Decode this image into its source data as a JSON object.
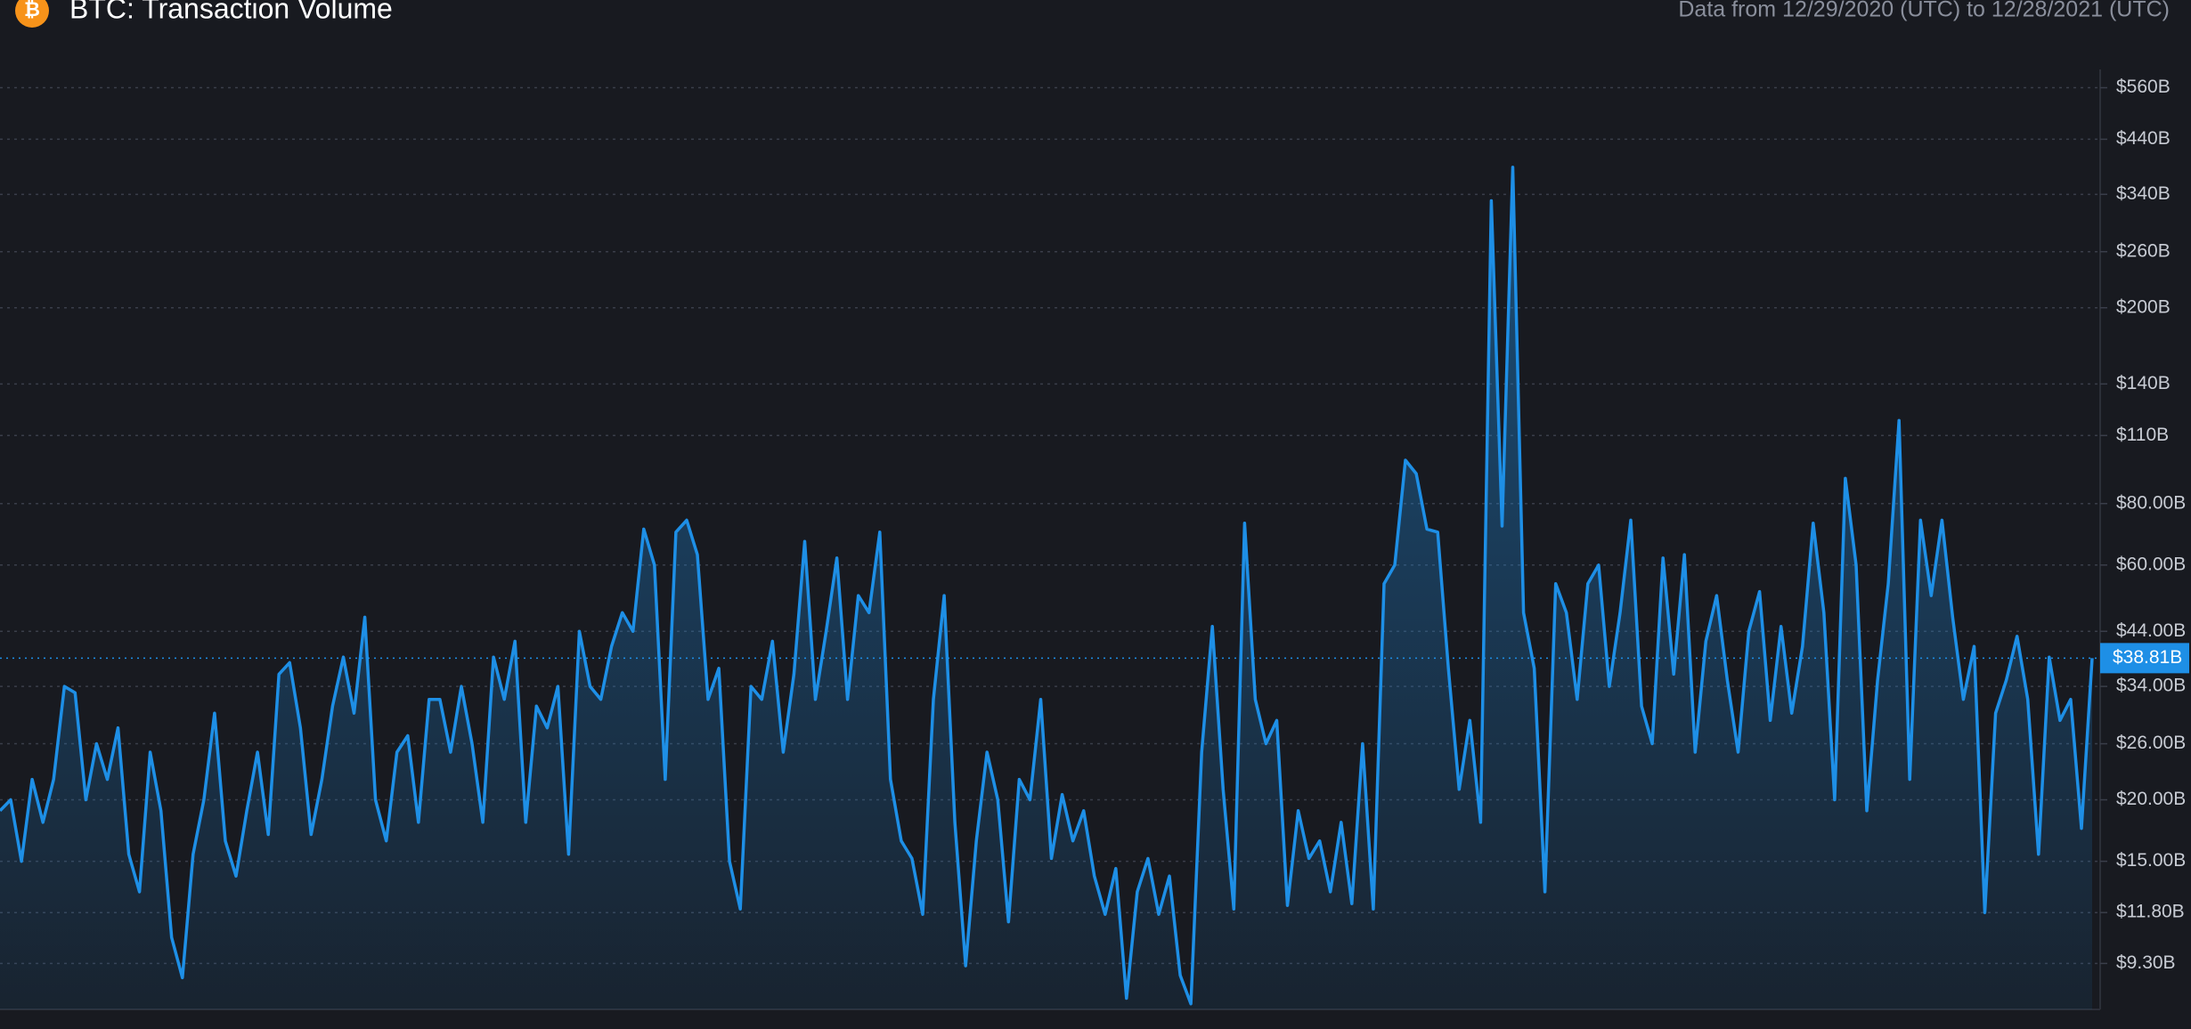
{
  "chart_data": {
    "type": "area",
    "title": "BTC: Transaction Volume",
    "subtitle": "Data from 12/29/2020 (UTC) to 12/28/2021 (UTC)",
    "color": "#1e8fe6",
    "log_scale": true,
    "grid": true,
    "ylim": [
      7.5,
      610
    ],
    "yticks": [
      {
        "value": 560,
        "label": "$560B"
      },
      {
        "value": 440,
        "label": "$440B"
      },
      {
        "value": 340,
        "label": "$340B"
      },
      {
        "value": 260,
        "label": "$260B"
      },
      {
        "value": 200,
        "label": "$200B"
      },
      {
        "value": 140,
        "label": "$140B"
      },
      {
        "value": 110,
        "label": "$110B"
      },
      {
        "value": 80,
        "label": "$80.00B"
      },
      {
        "value": 60,
        "label": "$60.00B"
      },
      {
        "value": 44,
        "label": "$44.00B"
      },
      {
        "value": 34,
        "label": "$34.00B"
      },
      {
        "value": 26,
        "label": "$26.00B"
      },
      {
        "value": 20,
        "label": "$20.00B"
      },
      {
        "value": 15,
        "label": "$15.00B"
      },
      {
        "value": 11.8,
        "label": "$11.80B"
      },
      {
        "value": 9.3,
        "label": "$9.30B"
      }
    ],
    "last_value_label": "$38.81B",
    "values": [
      19,
      20,
      15,
      22,
      18,
      22,
      34,
      33,
      20,
      26,
      22,
      28,
      15.5,
      13,
      25,
      19,
      10.5,
      8.7,
      15.5,
      20,
      30,
      16.5,
      14,
      19,
      25,
      17,
      36,
      38,
      28,
      17,
      22,
      31,
      39,
      30,
      47,
      20,
      16.5,
      25,
      27,
      18,
      32,
      32,
      25,
      34,
      26,
      18,
      39,
      32,
      42,
      18,
      31,
      28,
      34,
      15.5,
      44,
      34,
      32,
      41,
      48,
      44,
      71,
      60,
      22,
      70,
      74,
      63,
      32,
      37,
      15,
      12,
      34,
      32,
      42,
      25,
      36,
      67,
      32,
      44,
      62,
      32,
      52,
      48,
      70,
      22,
      16.5,
      15.2,
      11.7,
      32,
      52,
      18,
      9.2,
      16.5,
      25,
      20,
      11.3,
      22,
      20,
      32,
      15.2,
      20.5,
      16.5,
      19,
      14,
      11.7,
      14.5,
      7.9,
      13,
      15.2,
      11.7,
      14,
      8.8,
      7.7,
      25,
      45,
      21,
      12,
      73,
      32,
      26,
      29,
      12.2,
      19,
      15.2,
      16.5,
      13,
      18,
      12.3,
      26,
      12,
      55,
      60,
      98,
      92,
      71,
      70,
      37,
      21,
      29,
      18,
      330,
      72,
      386,
      48,
      37,
      13,
      55,
      48,
      32,
      55,
      60,
      34,
      48,
      74,
      31,
      26,
      62,
      36,
      63,
      25,
      42,
      52,
      35,
      25,
      44,
      53,
      29,
      45,
      30,
      41,
      73,
      48,
      20,
      90,
      60,
      19,
      35,
      55,
      118,
      22,
      74,
      52,
      74,
      47,
      32,
      41,
      11.8,
      30,
      35,
      43,
      32,
      15.5,
      39,
      29,
      32,
      17.5,
      38.81
    ]
  }
}
